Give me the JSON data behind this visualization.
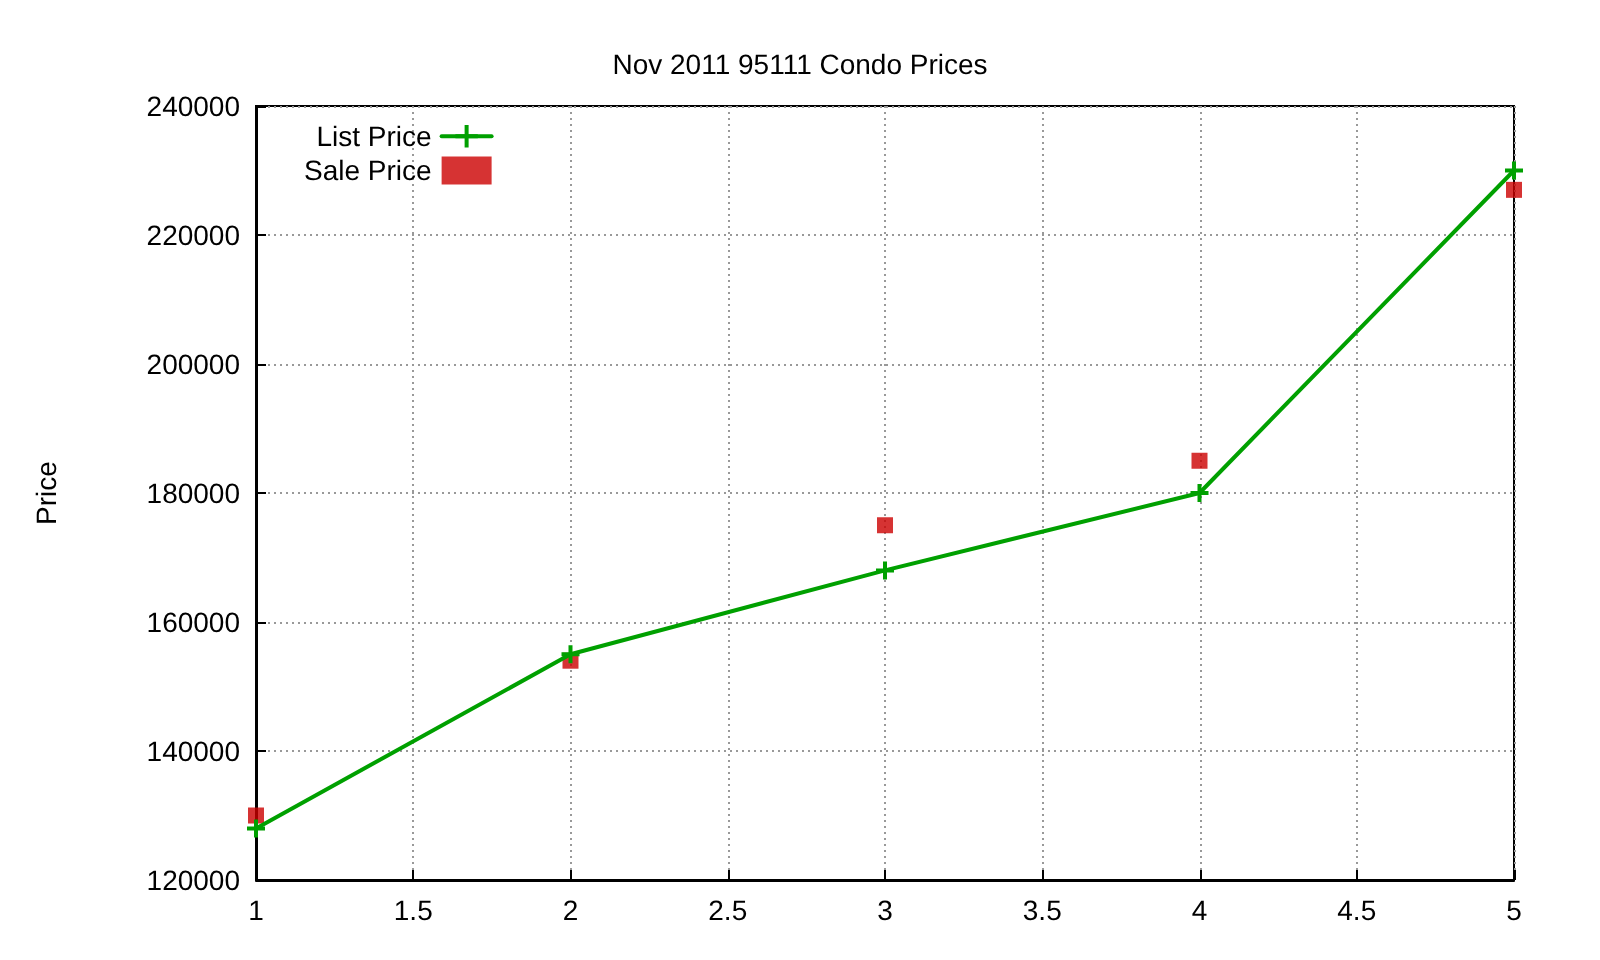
{
  "chart_data": {
    "type": "line",
    "title": "Nov 2011 95111 Condo Prices",
    "ylabel": "Price",
    "x": [
      1,
      2,
      3,
      4,
      5
    ],
    "series": [
      {
        "name": "List Price",
        "color": "#00a000",
        "marker": "cross",
        "line_style": "solid",
        "values": [
          128000,
          155000,
          168000,
          180000,
          230000
        ]
      },
      {
        "name": "Sale Price",
        "type": "scatter",
        "color": "#cc0000",
        "marker": "square",
        "values": [
          130000,
          154000,
          175000,
          185000,
          227000
        ]
      }
    ],
    "xlim": [
      1,
      5
    ],
    "xticks": [
      1,
      1.5,
      2,
      2.5,
      3,
      3.5,
      4,
      4.5,
      5
    ],
    "ylim": [
      120000,
      240000
    ],
    "yticks": [
      120000,
      140000,
      160000,
      180000,
      200000,
      220000,
      240000
    ],
    "grid": true,
    "legend": "top left"
  }
}
